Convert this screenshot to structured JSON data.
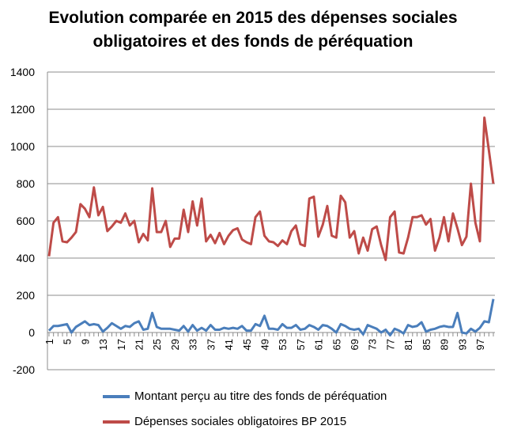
{
  "chart_data": {
    "type": "line",
    "title": "Evolution comparée en 2015 des dépenses sociales obligatoires et des fonds de péréquation",
    "title_lines": [
      "Evolution comparée en 2015 des dépenses sociales",
      "obligatoires et des fonds de péréquation"
    ],
    "xlabel": "",
    "ylabel": "",
    "ylim": [
      -200,
      1400
    ],
    "yticks": [
      -200,
      0,
      200,
      400,
      600,
      800,
      1000,
      1200,
      1400
    ],
    "xticks": [
      1,
      5,
      9,
      13,
      17,
      21,
      25,
      29,
      33,
      37,
      41,
      45,
      49,
      53,
      57,
      61,
      65,
      69,
      73,
      77,
      81,
      85,
      89,
      93,
      97
    ],
    "grid": true,
    "legend_position": "bottom",
    "series": [
      {
        "name": "Montant perçu au titre des fonds de péréquation",
        "color": "#4a7ebb",
        "values": [
          10,
          35,
          35,
          40,
          45,
          0,
          30,
          45,
          60,
          40,
          45,
          40,
          5,
          25,
          50,
          35,
          20,
          35,
          30,
          50,
          60,
          15,
          20,
          105,
          30,
          20,
          20,
          20,
          15,
          10,
          35,
          5,
          40,
          10,
          25,
          10,
          40,
          15,
          15,
          25,
          20,
          25,
          20,
          35,
          10,
          10,
          45,
          35,
          90,
          20,
          20,
          15,
          45,
          25,
          25,
          40,
          15,
          20,
          40,
          30,
          15,
          40,
          35,
          20,
          0,
          45,
          35,
          20,
          15,
          20,
          -10,
          40,
          30,
          20,
          0,
          15,
          -15,
          20,
          10,
          -5,
          40,
          30,
          35,
          55,
          5,
          15,
          20,
          30,
          35,
          30,
          30,
          105,
          0,
          -5,
          20,
          5,
          25,
          60,
          55,
          180
        ]
      },
      {
        "name": "Dépenses sociales obligatoires BP 2015",
        "color": "#be4b48",
        "values": [
          410,
          590,
          620,
          490,
          485,
          510,
          540,
          690,
          665,
          620,
          780,
          630,
          675,
          545,
          570,
          600,
          590,
          640,
          575,
          600,
          485,
          530,
          495,
          775,
          540,
          540,
          600,
          460,
          505,
          505,
          660,
          540,
          705,
          575,
          720,
          490,
          525,
          480,
          535,
          475,
          520,
          550,
          560,
          500,
          485,
          475,
          620,
          650,
          520,
          490,
          485,
          465,
          495,
          475,
          545,
          575,
          475,
          465,
          720,
          730,
          515,
          580,
          680,
          520,
          510,
          735,
          700,
          510,
          545,
          425,
          510,
          440,
          555,
          570,
          470,
          390,
          620,
          650,
          430,
          425,
          510,
          620,
          620,
          630,
          580,
          610,
          440,
          510,
          620,
          490,
          640,
          560,
          470,
          515,
          800,
          590,
          490,
          1155,
          980,
          800
        ]
      }
    ]
  }
}
